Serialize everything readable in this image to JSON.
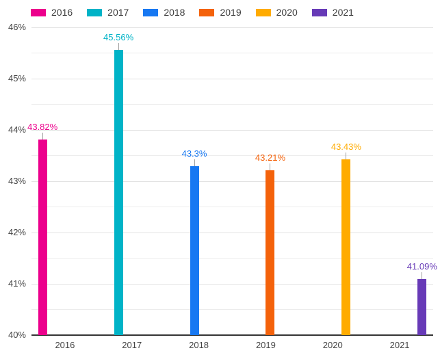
{
  "chart_data": {
    "type": "bar",
    "title": "",
    "categories": [
      "2016",
      "2017",
      "2018",
      "2019",
      "2020",
      "2021"
    ],
    "series": [
      {
        "name": "2016",
        "color": "#EC008C",
        "values": [
          43.82,
          null,
          null,
          null,
          null,
          null
        ],
        "annotation": "43.82%"
      },
      {
        "name": "2017",
        "color": "#00B3C7",
        "values": [
          null,
          45.56,
          null,
          null,
          null,
          null
        ],
        "annotation": "45.56%"
      },
      {
        "name": "2018",
        "color": "#1778F2",
        "values": [
          null,
          null,
          43.3,
          null,
          null,
          null
        ],
        "annotation": "43.3%"
      },
      {
        "name": "2019",
        "color": "#F4620B",
        "values": [
          null,
          null,
          null,
          43.21,
          null,
          null
        ],
        "annotation": "43.21%"
      },
      {
        "name": "2020",
        "color": "#FFAB00",
        "values": [
          null,
          null,
          null,
          null,
          43.43,
          null
        ],
        "annotation": "43.43%"
      },
      {
        "name": "2021",
        "color": "#673AB7",
        "values": [
          null,
          null,
          null,
          null,
          null,
          41.09
        ],
        "annotation": "41.09%"
      }
    ],
    "xlabel": "",
    "ylabel": "",
    "ylim": [
      40,
      46
    ],
    "y_tick_labels": [
      "40%",
      "41%",
      "42%",
      "43%",
      "44%",
      "45%",
      "46%"
    ],
    "y_major_step": 1,
    "y_minor_step": 0.5,
    "value_suffix": "%",
    "grid": true,
    "legend_position": "top"
  }
}
